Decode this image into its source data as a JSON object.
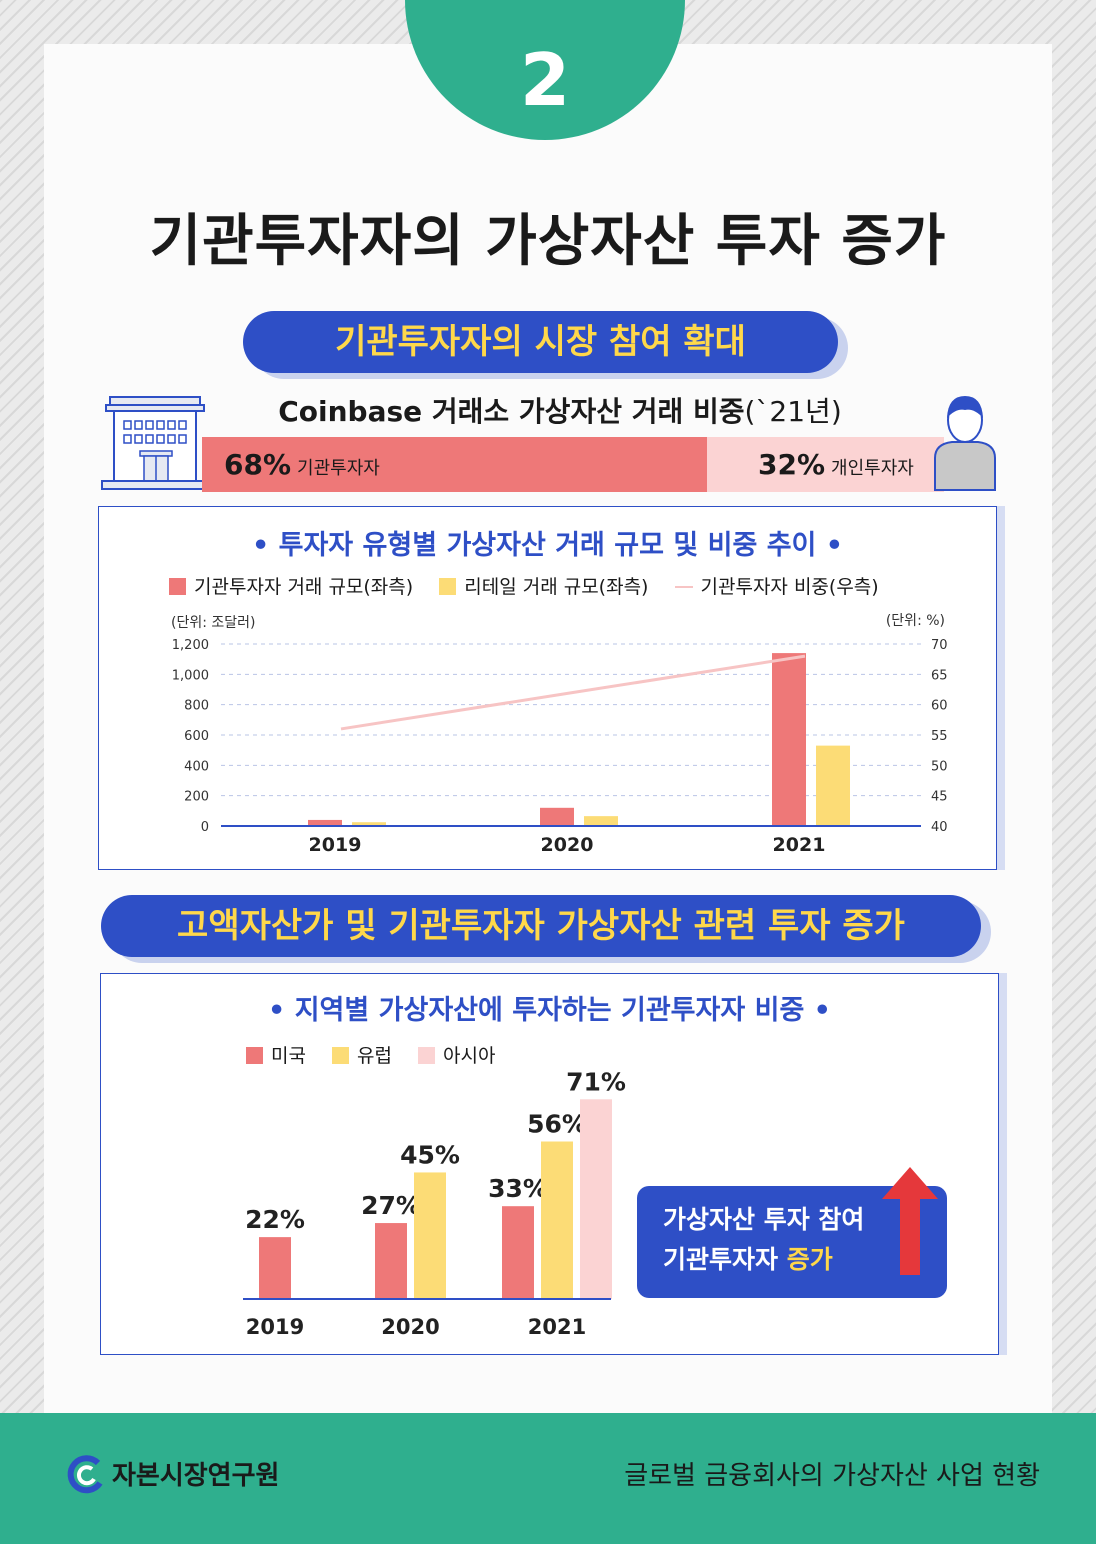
{
  "page": {
    "badge": "2",
    "title": "기관투자자의 가상자산 투자 증가",
    "section1_title": "기관투자자의 시장 참여 확대",
    "section2_title": "고액자산가 및 기관투자자 가상자산 관련 투자 증가",
    "callout_line1": "가상자산 투자 참여",
    "callout_line2_a": "기관투자자 ",
    "callout_line2_b": "증가",
    "footer_org": "자본시장연구원",
    "footer_publication": "글로벌 금융회사의 가상자산 사업 현황"
  },
  "chart_data": [
    {
      "type": "bar",
      "title": "Coinbase 거래소 가상자산 거래 비중",
      "title_suffix": "(`21년)",
      "categories": [
        "기관투자자",
        "개인투자자"
      ],
      "values": [
        68,
        32
      ],
      "value_labels": [
        "68%",
        "32%"
      ],
      "colors": [
        "#ee7878",
        "#fbd3d3"
      ],
      "icons": [
        "building-icon",
        "person-icon"
      ]
    },
    {
      "type": "bar",
      "title": "투자자 유형별 가상자산 거래 규모 및 비중 추이",
      "categories": [
        "2019",
        "2020",
        "2021"
      ],
      "ylabel_left": "(단위: 조달러)",
      "ylabel_right": "(단위: %)",
      "ylim_left": [
        0,
        1200
      ],
      "ylim_right": [
        40,
        70
      ],
      "yticks_left": [
        "0",
        "200",
        "400",
        "600",
        "800",
        "1,000",
        "1,200"
      ],
      "yticks_right": [
        "40",
        "45",
        "50",
        "55",
        "60",
        "65",
        "70"
      ],
      "grid": true,
      "series": [
        {
          "name": "기관투자자 거래 규모(좌측)",
          "type": "bar",
          "axis": "left",
          "color": "#ee7878",
          "values": [
            40,
            120,
            1140
          ]
        },
        {
          "name": "리테일 거래 규모(좌측)",
          "type": "bar",
          "axis": "left",
          "color": "#fcdc76",
          "values": [
            25,
            65,
            530
          ]
        },
        {
          "name": "기관투자자 비중(우측)",
          "type": "line",
          "axis": "right",
          "color": "#f7c4c4",
          "values": [
            56,
            62,
            68
          ]
        }
      ]
    },
    {
      "type": "bar",
      "title": "지역별 가상자산에 투자하는 기관투자자 비중",
      "categories": [
        "2019",
        "2020",
        "2021"
      ],
      "ylim": [
        0,
        80
      ],
      "series": [
        {
          "name": "미국",
          "color": "#ee7878",
          "values": [
            22,
            27,
            33
          ],
          "labels": [
            "22%",
            "27%",
            "33%"
          ]
        },
        {
          "name": "유럽",
          "color": "#fcdc76",
          "values": [
            null,
            45,
            56
          ],
          "labels": [
            "",
            "45%",
            "56%"
          ]
        },
        {
          "name": "아시아",
          "color": "#fbd3d3",
          "values": [
            null,
            null,
            71
          ],
          "labels": [
            "",
            "",
            "71%"
          ]
        }
      ]
    }
  ]
}
